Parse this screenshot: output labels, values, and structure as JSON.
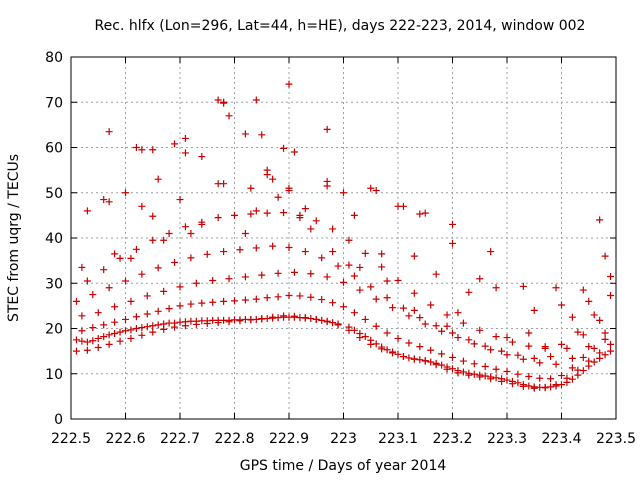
{
  "chart_data": {
    "type": "scatter",
    "title": "Rec. hlfx (Lon=296, Lat=44, h=HE), days 222-223, 2014, window 002",
    "xlabel": "GPS time / Days of year 2014",
    "ylabel": "STEC from uqrg / TECUs",
    "xlim": [
      222.5,
      223.5
    ],
    "ylim": [
      0,
      80
    ],
    "xticks": [
      222.5,
      222.6,
      222.7,
      222.8,
      222.9,
      223.0,
      223.1,
      223.2,
      223.3,
      223.4,
      223.5
    ],
    "xtick_labels": [
      "222.5",
      "222.6",
      "222.7",
      "222.8",
      "222.9",
      "223",
      "223.1",
      "223.2",
      "223.3",
      "223.4",
      "223.5"
    ],
    "yticks": [
      0,
      10,
      20,
      30,
      40,
      50,
      60,
      70,
      80
    ],
    "ytick_labels": [
      "0",
      "10",
      "20",
      "30",
      "40",
      "50",
      "60",
      "70",
      "80"
    ],
    "grid": true,
    "marker": "+",
    "color": "#cc0000",
    "series": [
      {
        "x": [
          222.51,
          222.52,
          222.53,
          222.54,
          222.55,
          222.56,
          222.57,
          222.58,
          222.59,
          222.6,
          222.61,
          222.62,
          222.63,
          222.64,
          222.65,
          222.66,
          222.67,
          222.68,
          222.69,
          222.7,
          222.71,
          222.72,
          222.73,
          222.74,
          222.75,
          222.76,
          222.77,
          222.78,
          222.79,
          222.8,
          222.81,
          222.82,
          222.83,
          222.84,
          222.85,
          222.86,
          222.87,
          222.88,
          222.89,
          222.9,
          222.91,
          222.92,
          222.93,
          222.94,
          222.95,
          222.96,
          222.97,
          222.98,
          222.99,
          223.01,
          223.02,
          223.03,
          223.04,
          223.05,
          223.06,
          223.07,
          223.08,
          223.09,
          223.1,
          223.11,
          223.12,
          223.13,
          223.14,
          223.15,
          223.16,
          223.17,
          223.18,
          223.19,
          223.2,
          223.21,
          223.22,
          223.23,
          223.24,
          223.25,
          223.26,
          223.27,
          223.28,
          223.29,
          223.3,
          223.31,
          223.32,
          223.33,
          223.34,
          223.35,
          223.36,
          223.37,
          223.38,
          223.39,
          223.4,
          223.41,
          223.42,
          223.43,
          223.44,
          223.45,
          223.46,
          223.47,
          223.48,
          223.49,
          222.51,
          222.53,
          222.55,
          222.57,
          222.59,
          222.61,
          222.63,
          222.65,
          222.67,
          222.69,
          222.71,
          222.73,
          222.75,
          222.77,
          222.79,
          222.81,
          222.83,
          222.85,
          222.87,
          222.89,
          222.91,
          222.93,
          222.95,
          222.97,
          222.99,
          223.01,
          223.03,
          223.05,
          223.07,
          223.09,
          223.11,
          223.13,
          223.15,
          223.17,
          223.19,
          223.21,
          223.23,
          223.25,
          223.27,
          223.29,
          223.31,
          223.33,
          223.35,
          223.37,
          223.39,
          223.41,
          223.43,
          223.45,
          223.47,
          223.49,
          222.52,
          222.54,
          222.56,
          222.58,
          222.6,
          222.62,
          222.64,
          222.66,
          222.68,
          222.7,
          222.72,
          222.74,
          222.76,
          222.78,
          222.8,
          222.82,
          222.84,
          222.86,
          222.88,
          222.9,
          222.92,
          222.94,
          222.96,
          222.98,
          223.0,
          223.02,
          223.04,
          223.06,
          223.08,
          223.1,
          223.12,
          223.14,
          223.16,
          223.18,
          223.2,
          223.22,
          223.24,
          223.26,
          223.28,
          223.3,
          223.32,
          223.34,
          223.36,
          223.38,
          223.4,
          223.42,
          223.44,
          223.46,
          223.48,
          222.52,
          222.55,
          222.58,
          222.61,
          222.64,
          222.67,
          222.7,
          222.73,
          222.76,
          222.79,
          222.82,
          222.85,
          222.88,
          222.91,
          222.94,
          222.97,
          223.0,
          223.03,
          223.06,
          223.09,
          223.12,
          223.15,
          223.18,
          223.21,
          223.24,
          223.27,
          223.3,
          223.33,
          223.36,
          223.39,
          223.42,
          223.45,
          223.48,
          222.51,
          222.54,
          222.57,
          222.6,
          222.63,
          222.66,
          222.69,
          222.72,
          222.75,
          222.78,
          222.81,
          222.84,
          222.87,
          222.9,
          222.93,
          222.96,
          222.99,
          223.02,
          223.05,
          223.08,
          223.11,
          223.14,
          223.17,
          223.2,
          223.23,
          223.26,
          223.29,
          223.32,
          223.35,
          223.38,
          223.41,
          223.44,
          223.47,
          222.53,
          222.56,
          222.59,
          222.62,
          222.65,
          222.68,
          222.71,
          222.74,
          222.77,
          222.8,
          222.83,
          222.86,
          222.89,
          222.92,
          222.95,
          222.98,
          223.01,
          223.04,
          223.07,
          223.1,
          223.13,
          223.16,
          223.19,
          223.22,
          223.25,
          223.28,
          223.31,
          223.34,
          223.37,
          223.4,
          223.43,
          223.46,
          223.49,
          222.53,
          222.57,
          222.6,
          222.63,
          222.66,
          222.7,
          222.74,
          222.78,
          222.83,
          222.86,
          222.9,
          222.93,
          222.97,
          223.02,
          223.06,
          223.1,
          223.14,
          223.2,
          223.25,
          223.33,
          223.4,
          223.45,
          222.56,
          222.63,
          222.71,
          222.78,
          222.84,
          222.9,
          222.97,
          223.07,
          223.13,
          223.2,
          223.27,
          223.35,
          223.44,
          222.52,
          222.62,
          222.65,
          222.71,
          222.77,
          222.78,
          222.79,
          222.82,
          222.85,
          222.86,
          222.87,
          222.89,
          222.9,
          222.91,
          222.97,
          223.0,
          223.05,
          223.11,
          223.15,
          223.17,
          223.21,
          223.28,
          223.34,
          223.39,
          223.47,
          223.48,
          222.57,
          222.58,
          222.61,
          222.65,
          222.67,
          222.69,
          222.72,
          222.74,
          222.77,
          222.82,
          222.84,
          222.88,
          222.92,
          222.94,
          222.98,
          223.01,
          223.03,
          223.08,
          223.13,
          223.19,
          223.23,
          223.3,
          223.37,
          223.42,
          223.49
        ],
        "y": [
          17.5,
          17.2,
          17.0,
          17.3,
          17.8,
          18.2,
          18.6,
          18.9,
          19.2,
          19.5,
          19.7,
          20.0,
          20.2,
          20.4,
          20.6,
          20.8,
          21.0,
          21.2,
          21.2,
          21.4,
          21.5,
          21.6,
          21.6,
          21.7,
          21.7,
          21.8,
          21.8,
          21.8,
          21.8,
          21.9,
          21.9,
          22.0,
          22.0,
          22.0,
          22.1,
          22.2,
          22.3,
          22.4,
          22.5,
          22.5,
          22.5,
          22.4,
          22.3,
          22.2,
          22.0,
          21.8,
          21.6,
          21.3,
          21.0,
          20.3,
          19.6,
          18.9,
          18.2,
          17.4,
          16.6,
          15.9,
          15.3,
          14.8,
          14.3,
          13.8,
          13.5,
          13.3,
          13.1,
          12.9,
          12.6,
          12.3,
          11.9,
          11.5,
          11.1,
          10.7,
          10.4,
          10.1,
          9.9,
          9.7,
          9.5,
          9.3,
          9.1,
          8.9,
          8.6,
          8.3,
          8.0,
          7.6,
          7.3,
          7.1,
          7.0,
          7.0,
          7.1,
          7.3,
          7.6,
          8.1,
          8.8,
          9.7,
          10.7,
          11.7,
          12.6,
          13.4,
          14.2,
          15.0,
          15.0,
          15.2,
          15.8,
          16.5,
          17.2,
          17.8,
          18.5,
          19.2,
          19.8,
          20.3,
          20.6,
          20.9,
          21.1,
          21.3,
          21.5,
          21.7,
          21.9,
          22.2,
          22.5,
          22.8,
          22.7,
          22.4,
          22.0,
          21.5,
          20.8,
          19.6,
          18.0,
          16.5,
          15.5,
          14.6,
          13.8,
          13.2,
          12.8,
          12.0,
          11.0,
          10.2,
          9.7,
          9.3,
          8.9,
          8.3,
          7.8,
          7.2,
          6.8,
          6.9,
          7.6,
          9.0,
          10.8,
          12.8,
          14.6,
          16.5,
          19.5,
          20.2,
          20.8,
          21.4,
          22.0,
          22.6,
          23.2,
          23.8,
          24.4,
          25.0,
          25.4,
          25.6,
          25.8,
          26.0,
          26.1,
          26.3,
          26.5,
          26.8,
          27.0,
          27.3,
          27.2,
          26.9,
          26.4,
          25.7,
          24.8,
          23.5,
          22.0,
          20.5,
          19.0,
          17.8,
          16.8,
          16.0,
          15.2,
          14.4,
          13.6,
          12.8,
          12.2,
          11.6,
          11.0,
          10.5,
          9.9,
          9.4,
          9.0,
          8.9,
          9.6,
          11.3,
          13.6,
          15.6,
          17.6,
          22.8,
          23.5,
          24.8,
          26.0,
          27.2,
          28.2,
          29.2,
          30.0,
          30.6,
          31.0,
          31.4,
          31.8,
          32.2,
          32.4,
          32.1,
          31.4,
          30.2,
          28.5,
          26.5,
          24.6,
          22.8,
          21.0,
          19.4,
          18.0,
          16.6,
          15.3,
          14.2,
          13.2,
          12.4,
          12.1,
          13.4,
          16.0,
          19.0,
          26.0,
          27.5,
          29.0,
          30.5,
          32.0,
          33.4,
          34.6,
          35.6,
          36.4,
          37.0,
          37.4,
          37.8,
          38.2,
          37.9,
          37.0,
          35.6,
          33.8,
          31.6,
          29.2,
          26.8,
          24.5,
          22.4,
          20.6,
          19.0,
          17.5,
          16.1,
          15.0,
          14.1,
          13.4,
          13.8,
          15.6,
          18.6,
          21.8,
          30.5,
          33.0,
          35.5,
          37.5,
          39.5,
          41.0,
          42.5,
          43.5,
          44.5,
          45.0,
          45.3,
          45.5,
          45.6,
          45.0,
          43.8,
          42.0,
          39.5,
          36.6,
          33.6,
          30.6,
          27.8,
          25.2,
          23.0,
          21.2,
          19.6,
          18.2,
          17.0,
          16.1,
          15.6,
          16.5,
          19.2,
          23.0,
          27.3,
          46.0,
          48.0,
          50.0,
          47.0,
          53.0,
          48.5,
          43.0,
          52.0,
          51.0,
          54.0,
          50.5,
          46.5,
          51.5,
          45.0,
          50.5,
          47.0,
          45.3,
          38.8,
          31.0,
          29.3,
          25.2,
          26.0,
          48.5,
          59.5,
          58.8,
          70.0,
          70.5,
          74.0,
          64.0,
          36.5,
          36.0,
          43.0,
          37.0,
          24.0,
          28.5,
          33.5,
          60.0,
          59.5,
          62.0,
          70.5,
          69.8,
          67.0,
          63.0,
          62.8,
          55.0,
          53.0,
          59.8,
          51.0,
          59.0,
          52.5,
          50.0,
          51.0,
          47.0,
          45.5,
          32.0,
          23.5,
          29.0,
          19.0,
          29.0,
          44.0,
          36.0,
          63.5,
          36.5,
          35.5,
          44.8,
          39.5,
          60.8,
          41.0,
          58.0,
          52.0,
          41.0,
          46.0,
          49.0,
          44.5,
          42.0,
          37.0,
          34.0,
          33.5,
          30.5,
          24.0,
          20.5,
          28.0,
          18.0,
          16.0,
          22.5,
          31.5
        ]
      }
    ]
  }
}
